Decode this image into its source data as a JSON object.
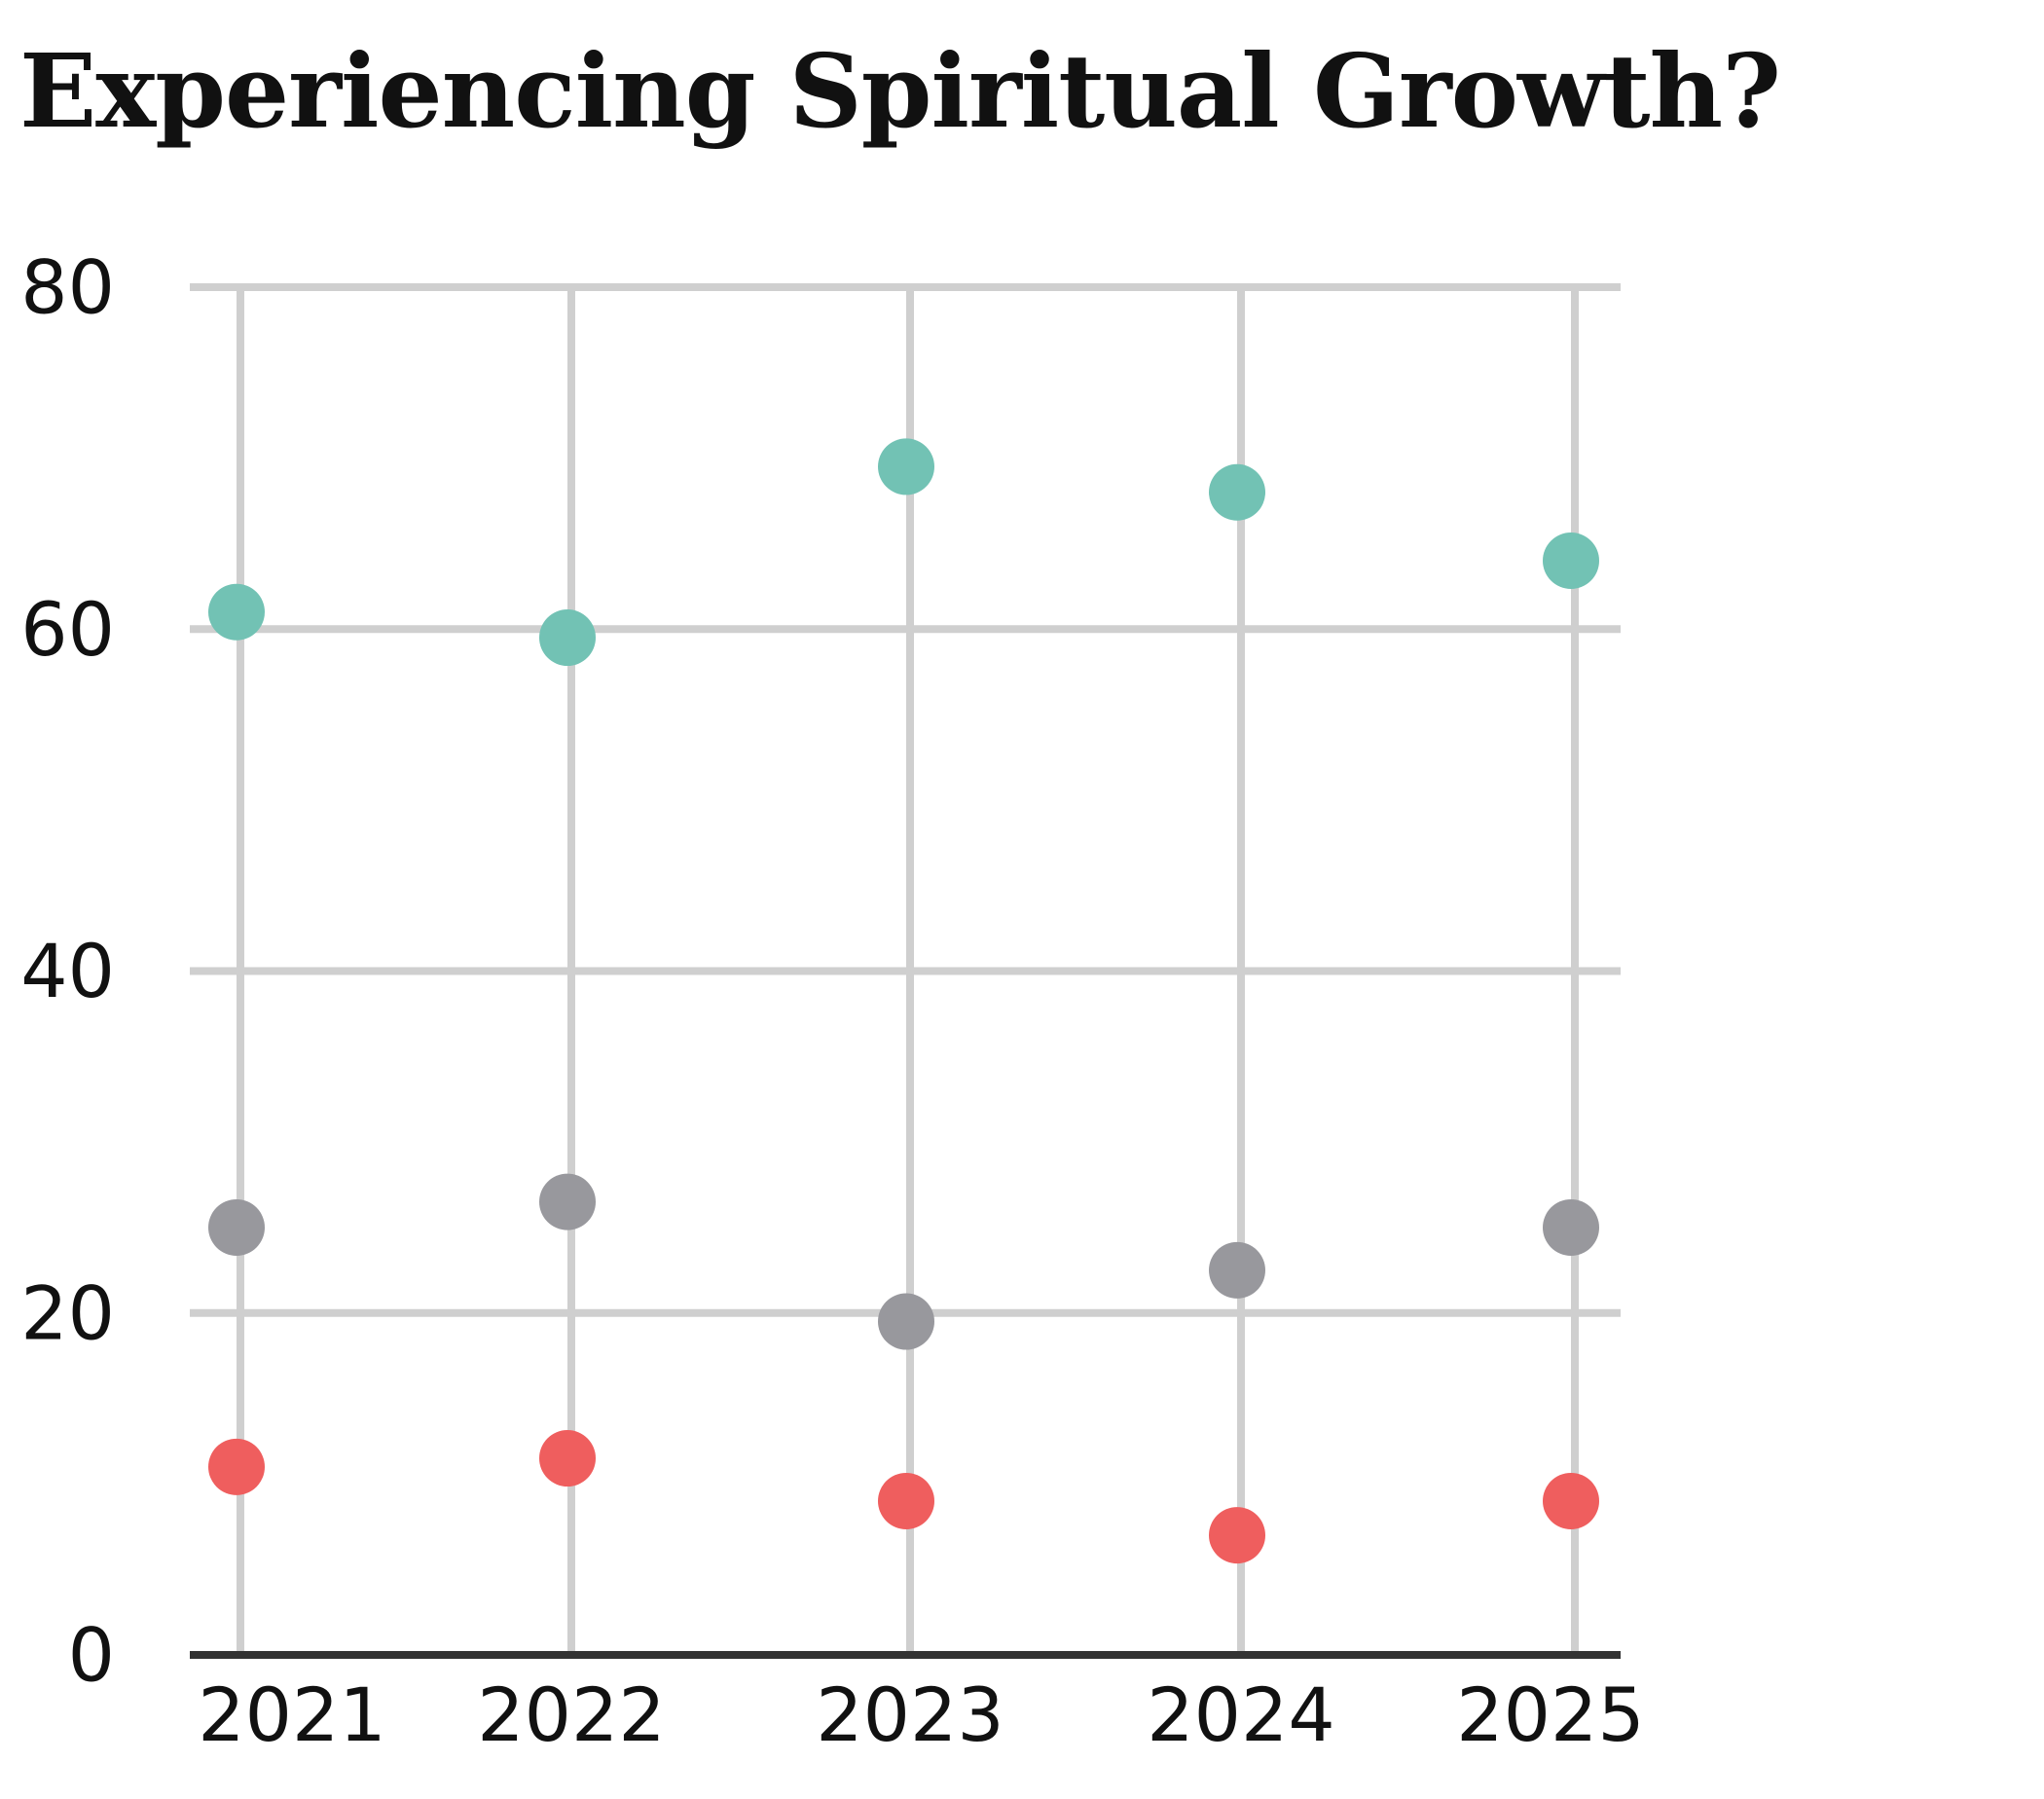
{
  "chart_data": {
    "type": "scatter",
    "title": "Experiencing Spiritual Growth?",
    "xlabel": "",
    "ylabel": "",
    "categories": [
      "2021",
      "2022",
      "2023",
      "2024",
      "2025"
    ],
    "ylim": [
      0,
      80
    ],
    "yticks": [
      "0",
      "20",
      "40",
      "60",
      "80"
    ],
    "grid": true,
    "legend": "none",
    "series": [
      {
        "color": "#72c2b4",
        "values": [
          61,
          59.5,
          69.5,
          68,
          64
        ]
      },
      {
        "color": "#98989d",
        "values": [
          25,
          26.5,
          19.5,
          22.5,
          25
        ]
      },
      {
        "color": "#ef5e5e",
        "values": [
          11,
          11.5,
          9,
          7,
          9
        ]
      }
    ]
  }
}
